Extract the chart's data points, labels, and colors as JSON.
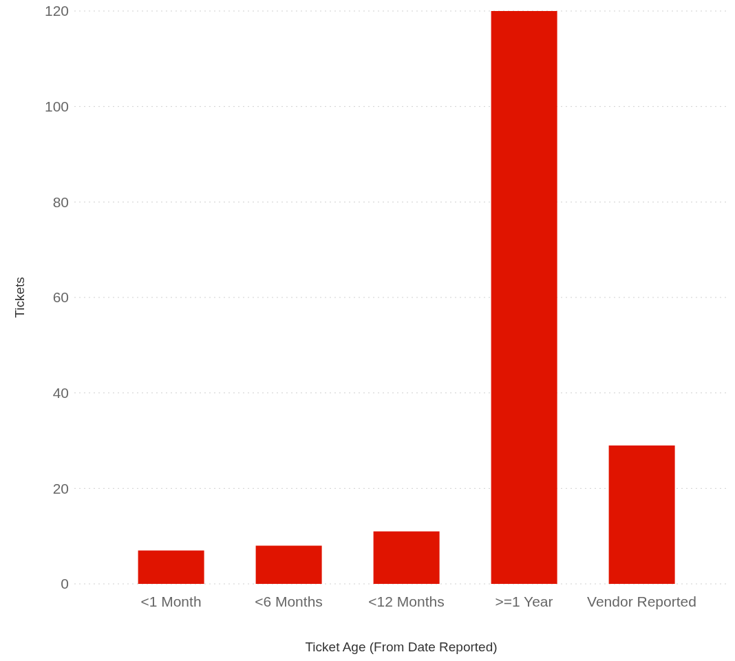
{
  "chart_data": {
    "type": "bar",
    "xlabel": "Ticket Age (From Date Reported)",
    "ylabel": "Tickets",
    "categories": [
      "<1 Month",
      "<6 Months",
      "<12 Months",
      ">=1 Year",
      "Vendor Reported"
    ],
    "values": [
      7,
      8,
      11,
      120,
      29
    ],
    "color": "#e01400",
    "ylim": [
      0,
      120
    ],
    "yticks": [
      0,
      20,
      40,
      60,
      80,
      100,
      120
    ],
    "grid": "y"
  }
}
